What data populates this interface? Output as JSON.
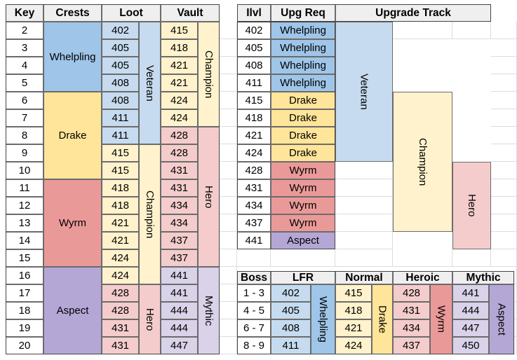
{
  "colors": {
    "whelpling": "#9fc5e8",
    "veteran": "#c6dbef",
    "drake": "#ffe599",
    "champion": "#fff2cc",
    "wyrm": "#ea9999",
    "hero": "#f4cccc",
    "aspect": "#b4a7d6",
    "mythic": "#d9d2e9",
    "header": "#efefef"
  },
  "left": {
    "headers": [
      "Key",
      "Crests",
      "Loot",
      "Vault"
    ],
    "keys": [
      "2",
      "3",
      "4",
      "5",
      "6",
      "7",
      "8",
      "9",
      "10",
      "11",
      "12",
      "13",
      "14",
      "15",
      "16",
      "17",
      "18",
      "19",
      "20"
    ],
    "crests": [
      "Whelpling",
      "Drake",
      "Wyrm",
      "Aspect"
    ],
    "loot": [
      "402",
      "405",
      "405",
      "408",
      "408",
      "411",
      "411",
      "415",
      "415",
      "418",
      "418",
      "421",
      "421",
      "424",
      "424",
      "428",
      "428",
      "431",
      "431"
    ],
    "loot_tracks": [
      "Veteran",
      "Champion",
      "Hero"
    ],
    "vault": [
      "415",
      "418",
      "421",
      "421",
      "424",
      "424",
      "428",
      "428",
      "431",
      "431",
      "434",
      "434",
      "437",
      "437",
      "441",
      "441",
      "444",
      "444",
      "447"
    ],
    "vault_tracks": [
      "Champion",
      "Hero",
      "Mythic"
    ]
  },
  "upgrade": {
    "headers": [
      "Ilvl",
      "Upg Req",
      "Upgrade Track"
    ],
    "ilvls": [
      "402",
      "405",
      "408",
      "411",
      "415",
      "418",
      "421",
      "424",
      "428",
      "431",
      "434",
      "437",
      "441"
    ],
    "reqs": [
      "Whelpling",
      "Whelpling",
      "Whelpling",
      "Whelpling",
      "Drake",
      "Drake",
      "Drake",
      "Drake",
      "Wyrm",
      "Wyrm",
      "Wyrm",
      "Wyrm",
      "Aspect"
    ],
    "tracks": [
      "Veteran",
      "Champion",
      "Hero"
    ]
  },
  "raid": {
    "headers": [
      "Boss",
      "LFR",
      "Normal",
      "Heroic",
      "Mythic"
    ],
    "bosses": [
      "1 - 3",
      "4 - 5",
      "6 - 7",
      "8 - 9"
    ],
    "lfr": [
      "402",
      "405",
      "408",
      "411"
    ],
    "normal": [
      "415",
      "418",
      "421",
      "424"
    ],
    "heroic": [
      "428",
      "431",
      "434",
      "437"
    ],
    "mythic": [
      "441",
      "444",
      "447",
      "450"
    ],
    "crests": [
      "Whelpling",
      "Drake",
      "Wyrm",
      "Aspect"
    ]
  }
}
